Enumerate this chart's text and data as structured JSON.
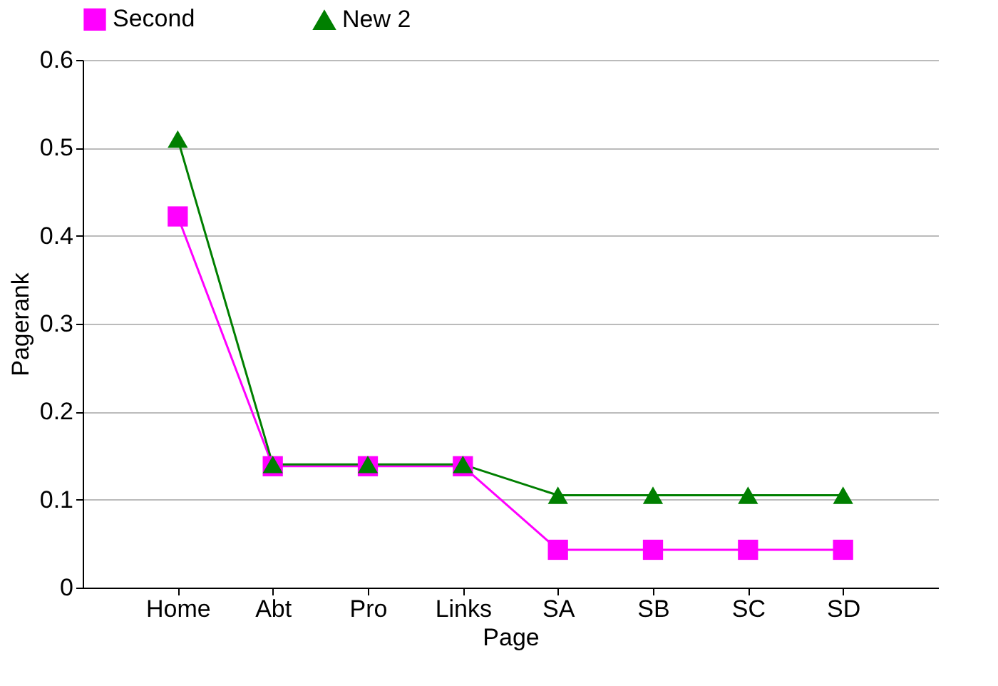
{
  "chart_data": {
    "type": "line",
    "xlabel": "Page",
    "ylabel": "Pagerank",
    "categories": [
      "Home",
      "Abt",
      "Pro",
      "Links",
      "SA",
      "SB",
      "SC",
      "SD"
    ],
    "series": [
      {
        "name": "Second",
        "color": "#ff00ff",
        "marker": "square",
        "values": [
          0.422,
          0.138,
          0.138,
          0.138,
          0.043,
          0.043,
          0.043,
          0.043
        ]
      },
      {
        "name": "New 2",
        "color": "#007f00",
        "marker": "triangle",
        "values": [
          0.51,
          0.14,
          0.14,
          0.14,
          0.105,
          0.105,
          0.105,
          0.105
        ]
      }
    ],
    "ylim": [
      0,
      0.6
    ],
    "yticks": [
      0,
      0.1,
      0.2,
      0.3,
      0.4,
      0.5,
      0.6
    ],
    "grid": "y",
    "legend": "top"
  }
}
